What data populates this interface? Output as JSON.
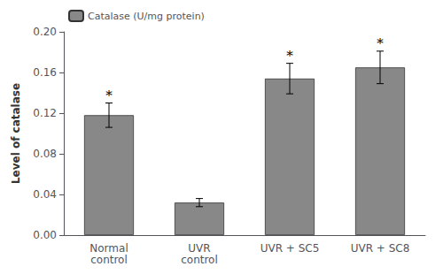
{
  "chart_data": {
    "type": "bar",
    "categories": [
      "Normal\ncontrol",
      "UVR\ncontrol",
      "UVR + SC5",
      "UVR + SC8"
    ],
    "series": [
      {
        "name": "Catalase (U/mg protein)",
        "color": "#888888",
        "values": [
          0.118,
          0.032,
          0.154,
          0.165
        ],
        "errors": [
          0.012,
          0.004,
          0.015,
          0.016
        ]
      }
    ],
    "ylabel": "Level of catalase",
    "ylim": [
      0,
      0.2
    ],
    "yticks": [
      {
        "value": 0,
        "label": "0.00"
      },
      0.04,
      0.08,
      0.12,
      0.16,
      {
        "value": 0.2,
        "label": "0.20"
      }
    ],
    "annotations": [
      {
        "category": "Normal\ncontrol",
        "text": "*"
      },
      {
        "category": "UVR + SC5",
        "text": "*"
      },
      {
        "category": "UVR + SC8",
        "text": "*"
      }
    ],
    "legend": "upper left",
    "grid": false
  }
}
